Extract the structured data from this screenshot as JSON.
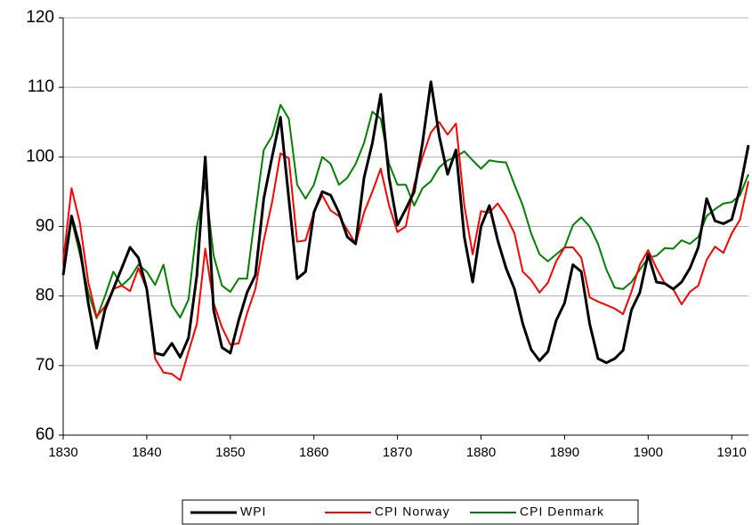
{
  "chart_data": {
    "type": "line",
    "x": [
      1830,
      1831,
      1832,
      1833,
      1834,
      1835,
      1836,
      1837,
      1838,
      1839,
      1840,
      1841,
      1842,
      1843,
      1844,
      1845,
      1846,
      1847,
      1848,
      1849,
      1850,
      1851,
      1852,
      1853,
      1854,
      1855,
      1856,
      1857,
      1858,
      1859,
      1860,
      1861,
      1862,
      1863,
      1864,
      1865,
      1866,
      1867,
      1868,
      1869,
      1870,
      1871,
      1872,
      1873,
      1874,
      1875,
      1876,
      1877,
      1878,
      1879,
      1880,
      1881,
      1882,
      1883,
      1884,
      1885,
      1886,
      1887,
      1888,
      1889,
      1890,
      1891,
      1892,
      1893,
      1894,
      1895,
      1896,
      1897,
      1898,
      1899,
      1900,
      1901,
      1902,
      1903,
      1904,
      1905,
      1906,
      1907,
      1908,
      1909,
      1910,
      1911,
      1912
    ],
    "series": [
      {
        "name": "WPI",
        "color": "#000000",
        "values": [
          83,
          91.5,
          87,
          79,
          72.5,
          78,
          81,
          84,
          87,
          85.5,
          81,
          71.8,
          71.5,
          73.2,
          71.2,
          74,
          83,
          100,
          78,
          72.6,
          71.8,
          76.5,
          80.5,
          83,
          94,
          100,
          105.7,
          94,
          82.5,
          83.5,
          92,
          95,
          94.5,
          92,
          88.5,
          87.5,
          97,
          102,
          109,
          97,
          90.2,
          92.5,
          95,
          102,
          110.8,
          103,
          97.5,
          101,
          88.5,
          82,
          90,
          93,
          88,
          84,
          81,
          76,
          72.3,
          70.7,
          72,
          76.5,
          79,
          84.5,
          83.5,
          76,
          71,
          70.4,
          71,
          72.2,
          78,
          80.5,
          86,
          82,
          81.8,
          81,
          82,
          84,
          87,
          94,
          90.8,
          90.4,
          91,
          95.5,
          101.7
        ]
      },
      {
        "name": "CPI Norway",
        "color": "#ff0000",
        "values": [
          85,
          95.5,
          90.5,
          82,
          77,
          78.5,
          81,
          81.5,
          80.7,
          84,
          81,
          71,
          69,
          68.8,
          67.9,
          72,
          76,
          86.8,
          79,
          75.5,
          73,
          73.2,
          77.5,
          81,
          88,
          93.5,
          100.5,
          99.8,
          87.8,
          88,
          92,
          94.5,
          92.3,
          91.5,
          89.5,
          87.5,
          92,
          95,
          98.3,
          93,
          89.2,
          90,
          96,
          100,
          103.5,
          105,
          103.2,
          104.8,
          93,
          86,
          92.2,
          92,
          93.3,
          91.5,
          89,
          83.5,
          82.3,
          80.5,
          81.9,
          85,
          87,
          87,
          85.5,
          79.8,
          79.2,
          78.7,
          78.2,
          77.4,
          80.6,
          84.5,
          86.6,
          84,
          81.8,
          81,
          78.8,
          80.6,
          81.5,
          85.2,
          87.1,
          86.2,
          89,
          91,
          96.5
        ]
      },
      {
        "name": "CPI Denmark",
        "color": "#008000",
        "values": [
          85.5,
          91,
          86,
          80.5,
          76.8,
          80,
          83.5,
          81.5,
          82.6,
          84.5,
          83.5,
          81.6,
          84.5,
          78.7,
          76.9,
          79.5,
          90,
          96.3,
          85.8,
          81.5,
          80.6,
          82.5,
          82.5,
          92,
          101,
          103,
          107.5,
          105.5,
          96,
          94,
          96,
          100,
          99,
          96,
          97,
          99,
          102,
          106.5,
          105.5,
          99,
          96,
          96,
          93,
          95.5,
          96.5,
          98.5,
          99.5,
          100,
          100.8,
          99.5,
          98.3,
          99.5,
          99.3,
          99.2,
          96,
          93,
          89,
          86,
          85,
          86,
          87,
          90.2,
          91.3,
          90,
          87.5,
          83.8,
          81.2,
          81,
          82,
          83.8,
          85.5,
          85.8,
          86.9,
          86.8,
          88,
          87.5,
          88.5,
          91.5,
          92.5,
          93.3,
          93.5,
          94.5,
          97.5
        ]
      }
    ],
    "xlim": [
      1830,
      1912
    ],
    "xticks": [
      1830,
      1840,
      1850,
      1860,
      1870,
      1880,
      1890,
      1900,
      1910
    ],
    "ylim": [
      60,
      120
    ],
    "yticks": [
      60,
      70,
      80,
      90,
      100,
      110,
      120
    ],
    "grid": true,
    "legend": "bottom"
  }
}
